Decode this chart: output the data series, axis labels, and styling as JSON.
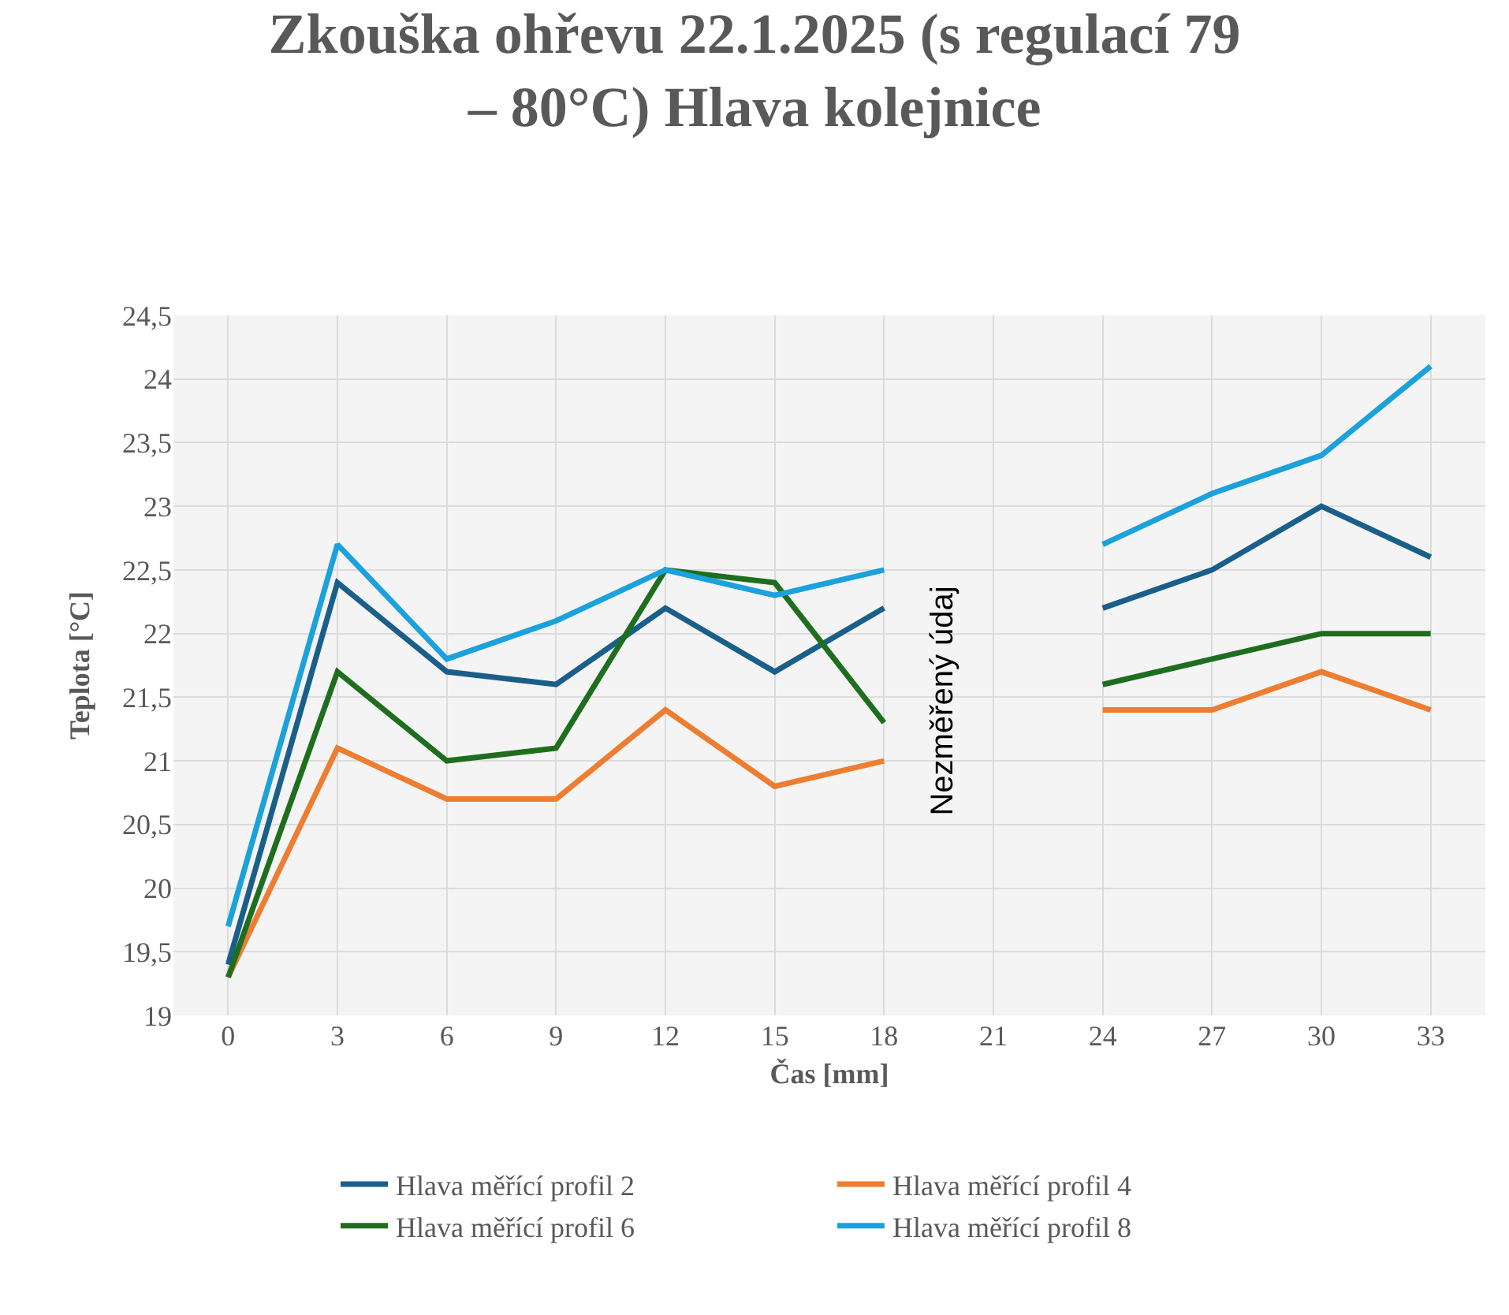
{
  "chart_data": {
    "type": "line",
    "title": "Zkouška ohřevu 22.1.2025 (s regulací 79 – 80°C) Hlava kolejnice",
    "xlabel": "Čas [mm]",
    "ylabel": "Teplota [°C]",
    "categories": [
      "0",
      "3",
      "6",
      "9",
      "12",
      "15",
      "18",
      "21",
      "24",
      "27",
      "30",
      "33"
    ],
    "series": [
      {
        "name": "Hlava měřící profil 2",
        "color": "#1a5e8a",
        "values": [
          19.4,
          22.4,
          21.7,
          21.6,
          22.2,
          21.7,
          22.2,
          null,
          22.2,
          22.5,
          23.0,
          22.6
        ]
      },
      {
        "name": "Hlava měřící profil 4",
        "color": "#ed7d31",
        "values": [
          19.3,
          21.1,
          20.7,
          20.7,
          21.4,
          20.8,
          21.0,
          null,
          21.4,
          21.4,
          21.7,
          21.4
        ]
      },
      {
        "name": "Hlava měřící profil 6",
        "color": "#1e6e1e",
        "values": [
          19.3,
          21.7,
          21.0,
          21.1,
          22.5,
          22.4,
          21.3,
          null,
          21.6,
          21.8,
          22.0,
          22.0
        ]
      },
      {
        "name": "Hlava měřící profil 8",
        "color": "#1ba1dc",
        "values": [
          19.7,
          22.7,
          21.8,
          22.1,
          22.5,
          22.3,
          22.5,
          null,
          22.7,
          23.1,
          23.4,
          24.1
        ]
      }
    ],
    "ylim": [
      19,
      24.5
    ],
    "yticks": [
      {
        "value": 19,
        "label": "19"
      },
      {
        "value": 19.5,
        "label": "19,5"
      },
      {
        "value": 20,
        "label": "20"
      },
      {
        "value": 20.5,
        "label": "20,5"
      },
      {
        "value": 21,
        "label": "21"
      },
      {
        "value": 21.5,
        "label": "21,5"
      },
      {
        "value": 22,
        "label": "22"
      },
      {
        "value": 22.5,
        "label": "22,5"
      },
      {
        "value": 23,
        "label": "23"
      },
      {
        "value": 23.5,
        "label": "23,5"
      },
      {
        "value": 24,
        "label": "24"
      },
      {
        "value": 24.5,
        "label": "24,5"
      }
    ],
    "annotations": [
      "Nezměřený údaj"
    ],
    "grid": true,
    "legend": "bottom",
    "marker": "none",
    "line_style": "solid"
  }
}
